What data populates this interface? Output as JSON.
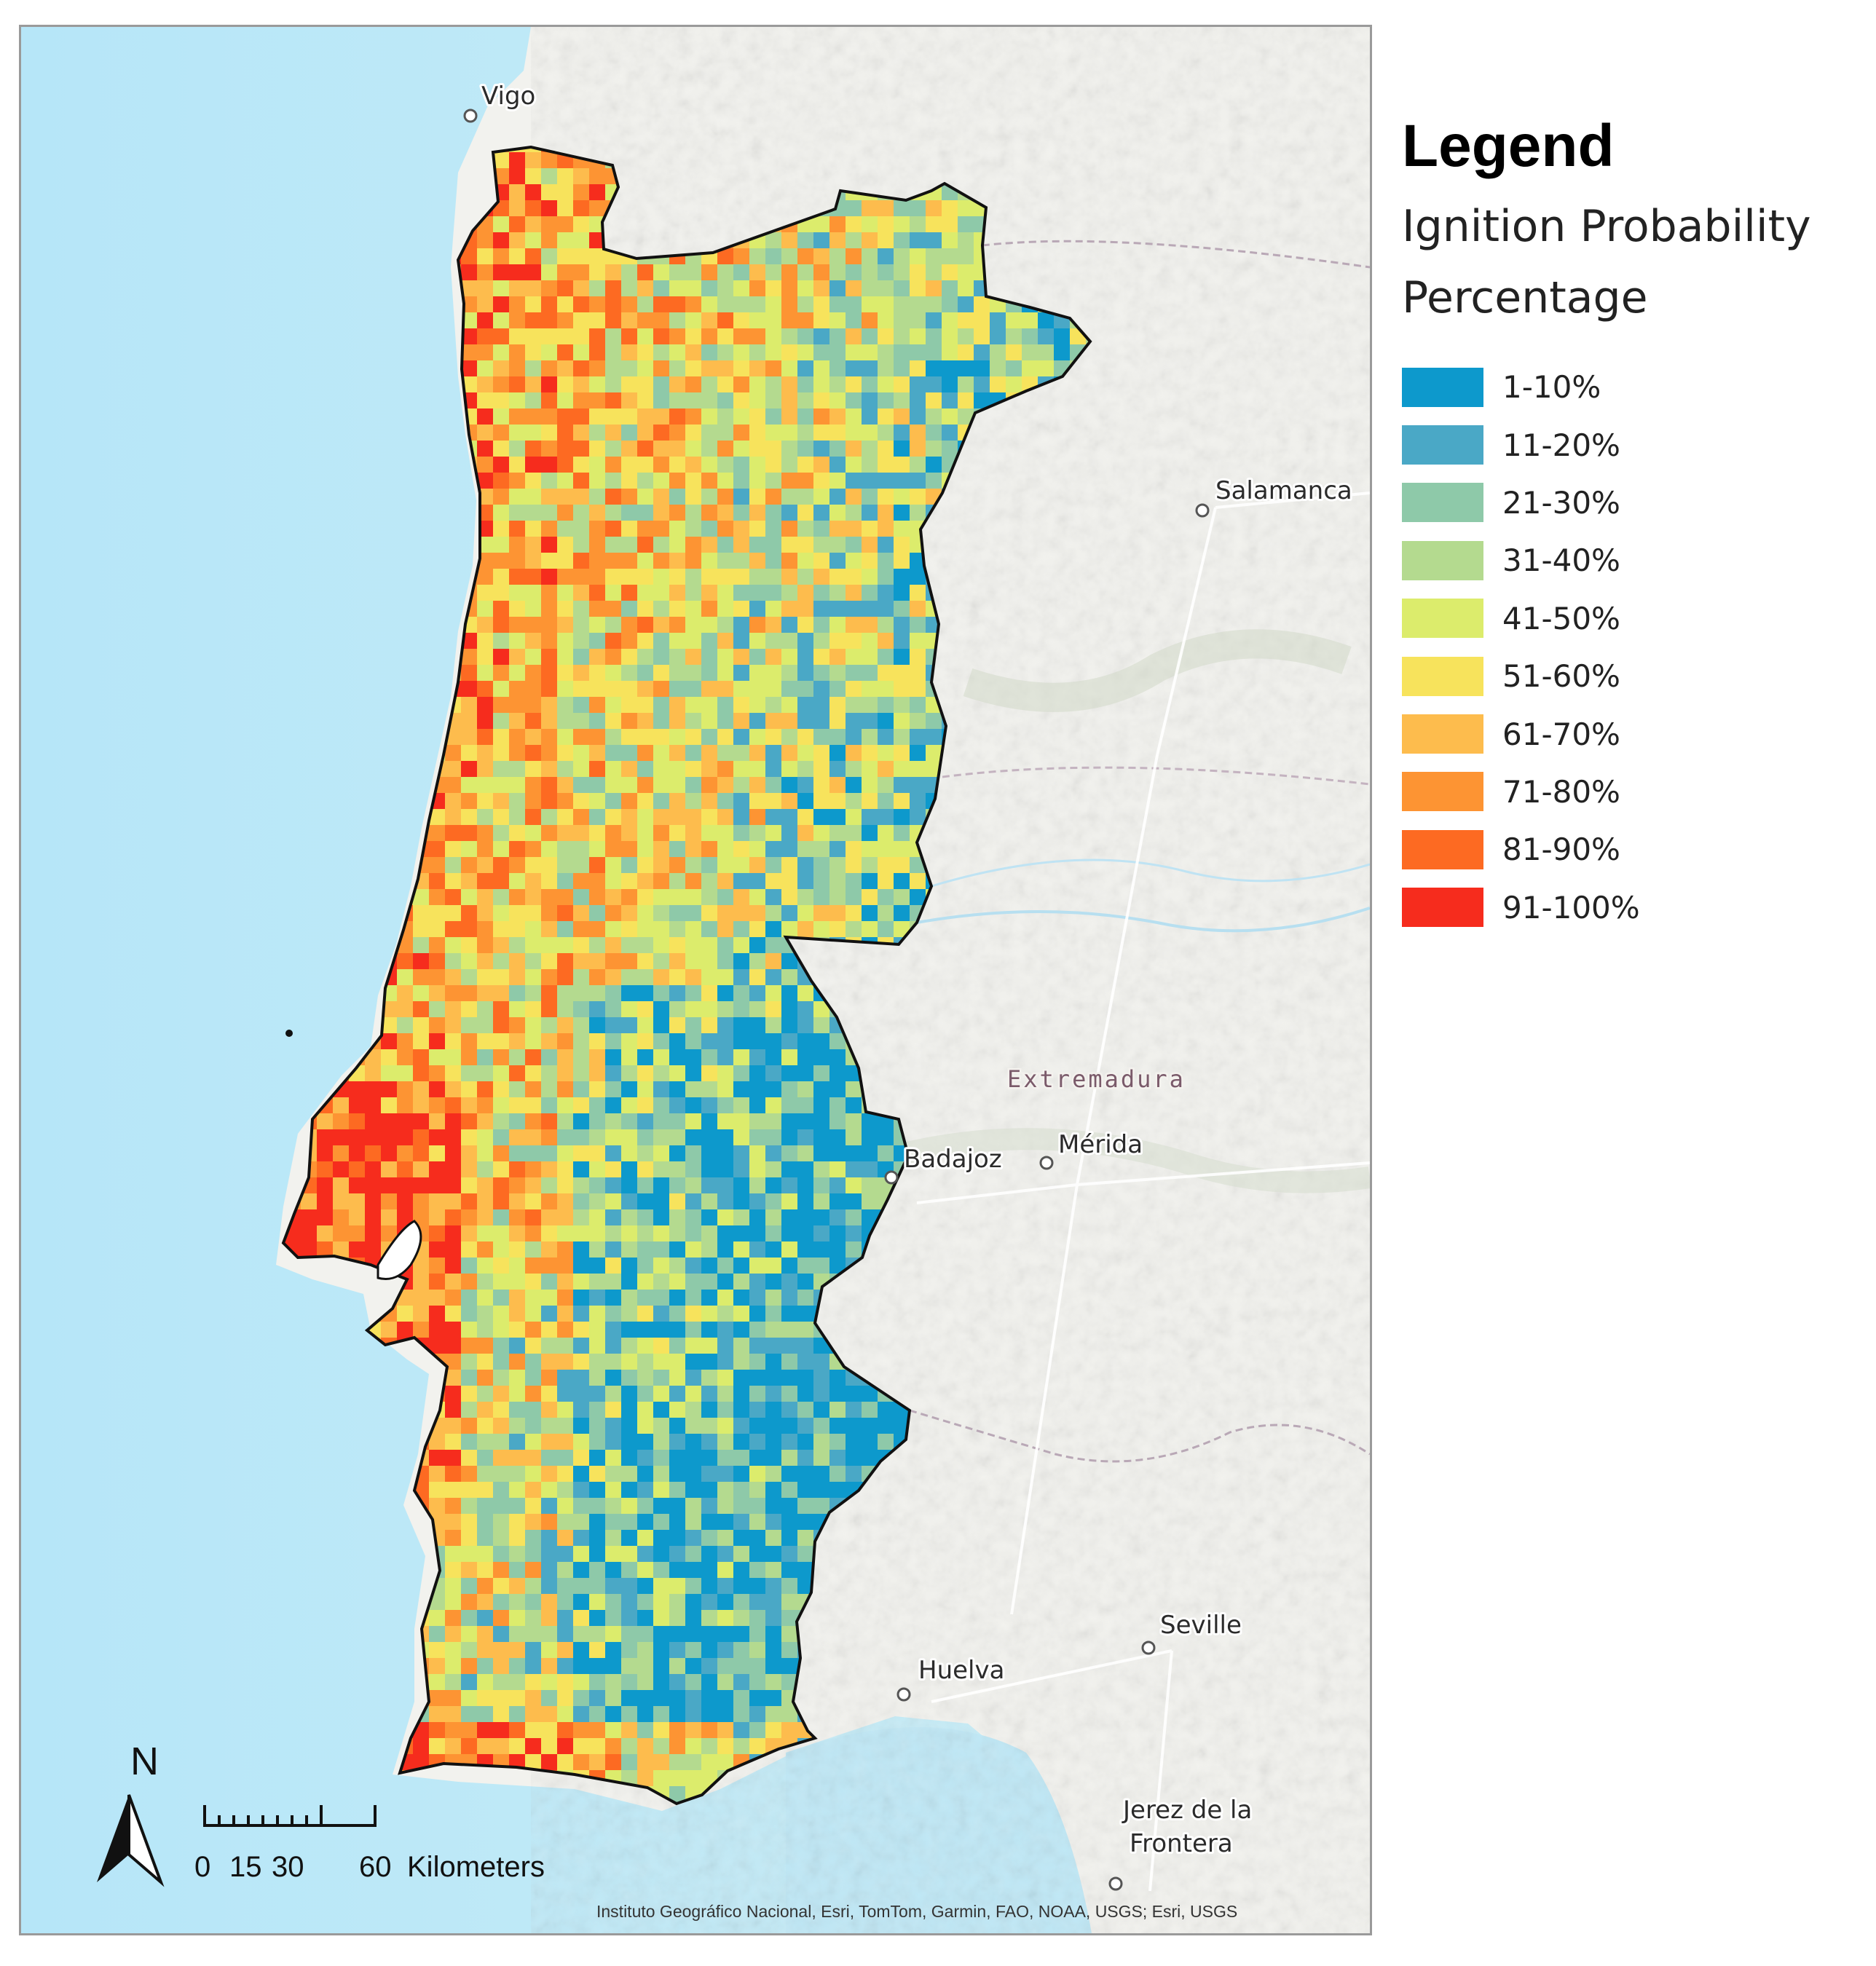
{
  "legend": {
    "title": "Legend",
    "subtitle_line1": "Ignition Probability",
    "subtitle_line2": "Percentage",
    "classes": [
      {
        "label": "1-10%",
        "color": "#0d99cc"
      },
      {
        "label": "11-20%",
        "color": "#4aa8c6"
      },
      {
        "label": "21-30%",
        "color": "#8ec9a9"
      },
      {
        "label": "31-40%",
        "color": "#b4da8f"
      },
      {
        "label": "41-50%",
        "color": "#dcec6c"
      },
      {
        "label": "51-60%",
        "color": "#f7e35c"
      },
      {
        "label": "61-70%",
        "color": "#fdbc4d"
      },
      {
        "label": "71-80%",
        "color": "#fd9433"
      },
      {
        "label": "81-90%",
        "color": "#fd6a22"
      },
      {
        "label": "91-100%",
        "color": "#f62c1d"
      }
    ]
  },
  "places": {
    "vigo": "Vigo",
    "salamanca": "Salamanca",
    "extremadura": "Extremadura",
    "badajoz": "Badajoz",
    "merida": "Mérida",
    "seville": "Seville",
    "huelva": "Huelva",
    "jerez_line1": "Jerez de la",
    "jerez_line2": "Frontera"
  },
  "north_arrow": {
    "label": "N",
    "icon": "north-arrow-icon"
  },
  "scale_bar": {
    "ticks": [
      "0",
      "15",
      "30",
      "60"
    ],
    "unit": "Kilometers"
  },
  "attribution": "Instituto Geográfico Nacional, Esri, TomTom, Garmin, FAO, NOAA, USGS; Esri, USGS",
  "colors": {
    "ocean": "#bfe8f6",
    "land": "#f2f2ee",
    "border": "#111111"
  }
}
